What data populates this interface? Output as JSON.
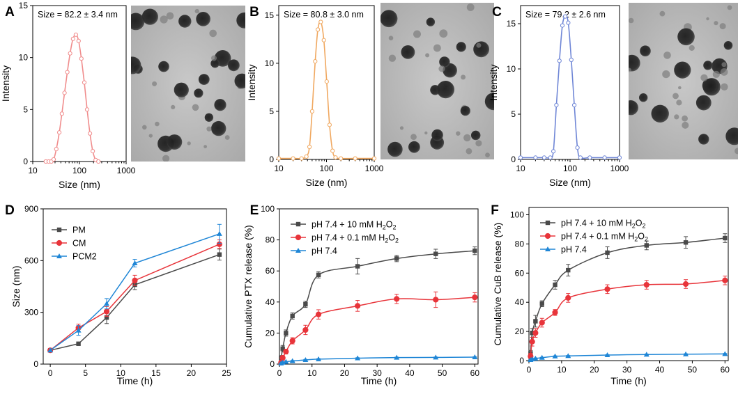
{
  "colors": {
    "PM": "#4a4a4a",
    "CM": "#e8343a",
    "PCM2": "#1f86d6",
    "A_curve": "#f08c8c",
    "B_curve": "#f0a860",
    "C_curve": "#6f86d6",
    "tem_bg": "#b9b9b9"
  },
  "chart_data": [
    {
      "panel": "A",
      "type": "line",
      "xscale": "log",
      "annotation": "Size = 82.2 ± 3.4 nm",
      "xlabel": "Size (nm)",
      "ylabel": "Intensity",
      "xlim": [
        10,
        1000
      ],
      "ylim": [
        0,
        15
      ],
      "xticks": [
        "10",
        "100",
        "1000"
      ],
      "yticks": [
        0,
        5,
        10,
        15
      ],
      "x": [
        19,
        22,
        25,
        28,
        32,
        37,
        42,
        48,
        55,
        63,
        73,
        84,
        96,
        110,
        127,
        146,
        168,
        193,
        222,
        255
      ],
      "values": [
        0,
        0,
        0,
        0.2,
        1.2,
        2.8,
        4.6,
        6.6,
        8.6,
        10.4,
        11.8,
        12.2,
        11.6,
        9.9,
        7.6,
        5.0,
        2.7,
        1.0,
        0.15,
        0
      ],
      "tem": "TEM micrograph"
    },
    {
      "panel": "B",
      "type": "line",
      "xscale": "log",
      "annotation": "Size = 80.8 ± 3.0 nm",
      "xlabel": "Size (nm)",
      "ylabel": "Intensity",
      "xlim": [
        10,
        1000
      ],
      "ylim": [
        0,
        16
      ],
      "xticks": [
        "10",
        "100",
        "1000"
      ],
      "yticks": [
        0,
        5,
        10,
        15
      ],
      "x": [
        10,
        20,
        30,
        38,
        44,
        50,
        58,
        66,
        76,
        88,
        101,
        116,
        134,
        155,
        200,
        400,
        1000
      ],
      "values": [
        0.1,
        0.1,
        0.1,
        0.3,
        1.3,
        5.0,
        10.2,
        13.5,
        14.3,
        12.4,
        8.1,
        3.6,
        0.9,
        0.2,
        0.1,
        0.1,
        0.1
      ],
      "tem": "TEM micrograph"
    },
    {
      "panel": "C",
      "type": "line",
      "xscale": "log",
      "annotation": "Size = 79.2 ± 2.6 nm",
      "xlabel": "Size (nm)",
      "ylabel": "Intensity",
      "xlim": [
        10,
        1000
      ],
      "ylim": [
        0,
        17
      ],
      "xticks": [
        "10",
        "100",
        "1000"
      ],
      "yticks": [
        0,
        5,
        10,
        15
      ],
      "x": [
        10,
        20,
        30,
        40,
        46,
        53,
        61,
        70,
        80,
        92,
        106,
        122,
        141,
        162,
        250,
        500,
        1000
      ],
      "values": [
        0.2,
        0.2,
        0.2,
        0.2,
        0.9,
        6.0,
        10.9,
        14.8,
        15.8,
        15.1,
        11.0,
        6.0,
        1.3,
        0.2,
        0.2,
        0.2,
        0.2
      ],
      "tem": "TEM micrograph"
    },
    {
      "panel": "D",
      "type": "line",
      "xlabel": "Time (h)",
      "ylabel": "Size (nm)",
      "xlim": [
        -1,
        25
      ],
      "ylim": [
        0,
        900
      ],
      "xticks": [
        0,
        5,
        10,
        15,
        20,
        25
      ],
      "yticks": [
        0,
        300,
        600,
        900
      ],
      "legend_position": "top-left",
      "x": [
        0,
        4,
        8,
        12,
        24
      ],
      "series": [
        {
          "name": "PM",
          "marker": "square",
          "values": [
            80,
            118,
            270,
            460,
            635
          ],
          "errors": [
            0,
            6,
            35,
            28,
            32
          ]
        },
        {
          "name": "CM",
          "marker": "circle",
          "values": [
            80,
            210,
            305,
            485,
            695
          ],
          "errors": [
            0,
            22,
            28,
            30,
            25
          ]
        },
        {
          "name": "PCM2",
          "marker": "triangle",
          "values": [
            80,
            195,
            350,
            585,
            755
          ],
          "errors": [
            0,
            28,
            30,
            22,
            55
          ]
        }
      ]
    },
    {
      "panel": "E",
      "type": "line",
      "xlabel": "Time (h)",
      "ylabel": "Cumulative PTX release (%)",
      "xlim": [
        0,
        61
      ],
      "ylim": [
        0,
        100
      ],
      "xticks": [
        0,
        10,
        20,
        30,
        40,
        50,
        60
      ],
      "yticks": [
        0,
        20,
        40,
        60,
        80,
        100
      ],
      "legend_position": "top-left",
      "x": [
        0.5,
        1,
        2,
        4,
        8,
        12,
        24,
        36,
        48,
        60
      ],
      "series": [
        {
          "name": "pH 7.4 + 10 mM H",
          "name_sub": "2",
          "name_mid": "O",
          "name_sub2": "2",
          "marker": "square",
          "values": [
            4,
            10,
            20,
            31,
            38.5,
            57.5,
            63,
            68,
            71,
            73
          ],
          "errors": [
            1.5,
            2,
            2,
            2,
            2,
            2,
            5,
            2,
            3,
            2.5
          ]
        },
        {
          "name": "pH 7.4 + 0.1 mM H",
          "name_sub": "2",
          "name_mid": "O",
          "name_sub2": "2",
          "marker": "circle",
          "values": [
            1,
            4,
            8,
            15,
            22,
            32,
            37.5,
            42,
            41.5,
            43
          ],
          "errors": [
            1,
            1.5,
            1.5,
            2,
            3,
            3,
            3.5,
            3,
            5,
            3
          ]
        },
        {
          "name": "pH 7.4",
          "marker": "triangle",
          "values": [
            0.5,
            1,
            1.5,
            2,
            2.7,
            3.2,
            3.8,
            4.2,
            4.3,
            4.5
          ],
          "errors": [
            0.3,
            0.3,
            0.3,
            0.3,
            0.3,
            0.3,
            0.3,
            0.3,
            0.3,
            0.3
          ]
        }
      ]
    },
    {
      "panel": "F",
      "type": "line",
      "xlabel": "Time (h)",
      "ylabel": "Cumulative CuB release (%)",
      "xlim": [
        0,
        61
      ],
      "ylim": [
        0,
        105
      ],
      "xticks": [
        0,
        10,
        20,
        30,
        40,
        50,
        60
      ],
      "yticks": [
        0,
        20,
        40,
        60,
        80,
        100
      ],
      "legend_position": "top-left",
      "x": [
        0.5,
        1,
        2,
        4,
        8,
        12,
        24,
        36,
        48,
        60
      ],
      "series": [
        {
          "name": "pH 7.4 + 10 mM H",
          "name_sub": "2",
          "name_mid": "O",
          "name_sub2": "2",
          "marker": "square",
          "values": [
            5,
            19,
            27,
            39,
            52,
            62,
            74,
            79,
            81,
            84
          ],
          "errors": [
            2,
            3,
            4,
            2,
            3,
            4,
            4,
            3,
            4,
            3
          ]
        },
        {
          "name": "pH 7.4 + 0.1 mM H",
          "name_sub": "2",
          "name_mid": "O",
          "name_sub2": "2",
          "marker": "circle",
          "values": [
            3,
            13,
            19,
            26,
            33,
            43,
            49,
            52,
            52.5,
            55
          ],
          "errors": [
            2,
            3,
            3,
            3,
            2,
            3,
            3,
            3,
            3,
            3
          ]
        },
        {
          "name": "pH 7.4",
          "marker": "triangle",
          "values": [
            0.5,
            1,
            1.5,
            2,
            3,
            3.2,
            3.8,
            4.2,
            4.4,
            4.6
          ],
          "errors": [
            0.3,
            0.3,
            0.3,
            0.3,
            0.3,
            0.3,
            0.3,
            0.3,
            0.3,
            0.3
          ]
        }
      ]
    }
  ]
}
